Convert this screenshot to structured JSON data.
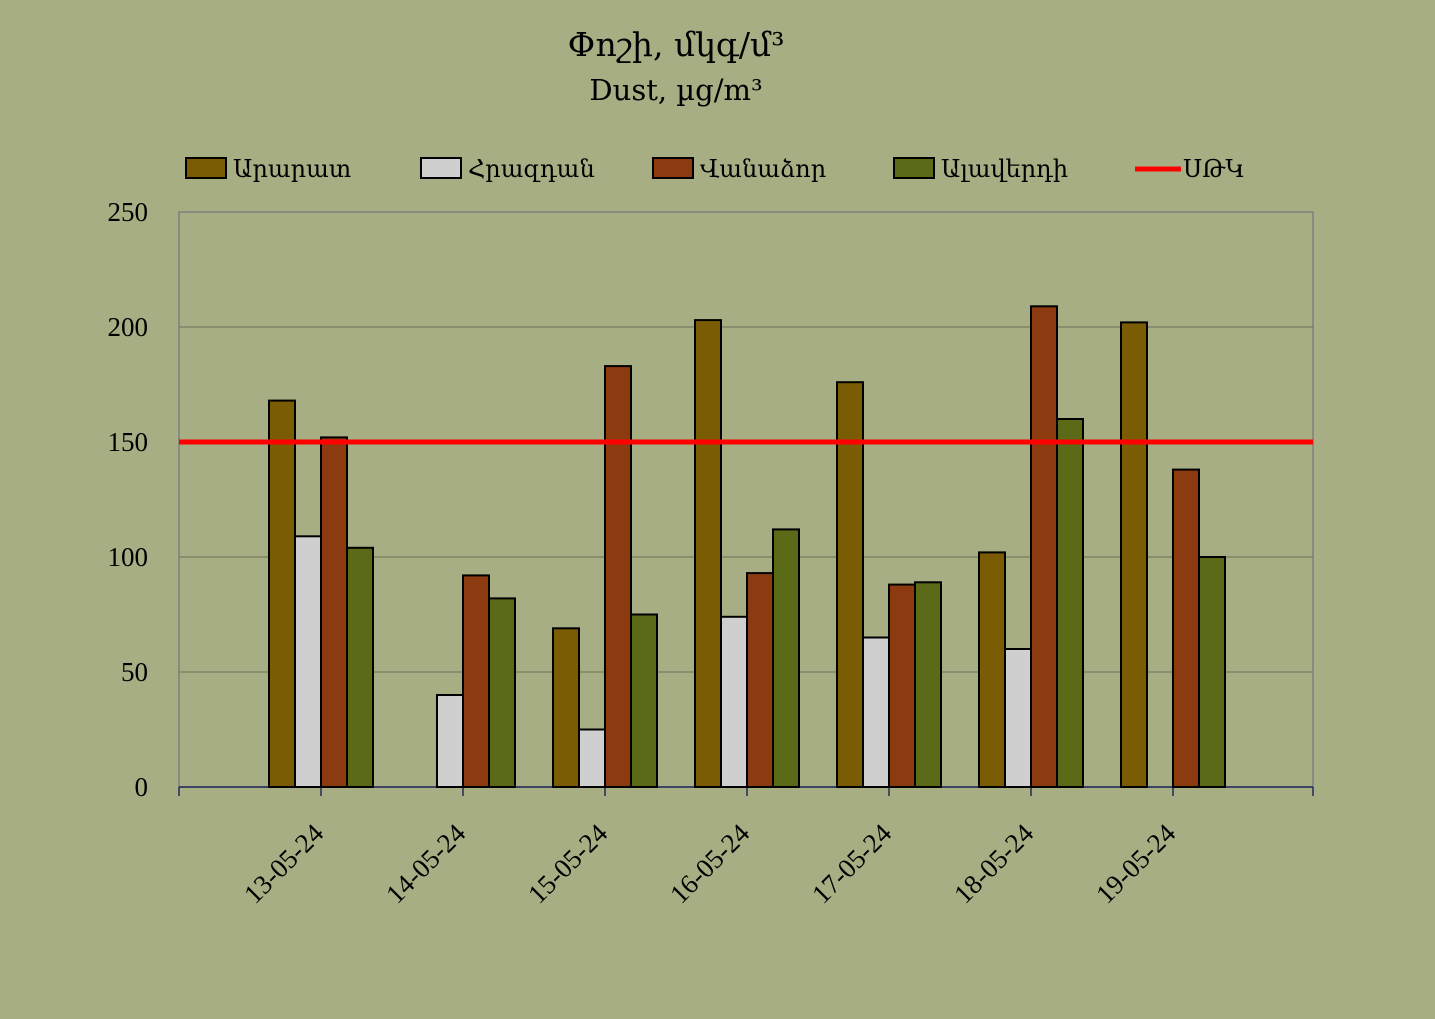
{
  "chart_data": {
    "type": "bar",
    "title": "Փոշի, մկգ/մ³",
    "subtitle": "Dust, µg/m³",
    "xlabel": "",
    "ylabel": "",
    "ylim": [
      0,
      250
    ],
    "yticks": [
      "0",
      "50",
      "100",
      "150",
      "200",
      "250"
    ],
    "grid": true,
    "legend_position": "top",
    "categories": [
      "13-05-24",
      "14-05-24",
      "15-05-24",
      "16-05-24",
      "17-05-24",
      "18-05-24",
      "19-05-24"
    ],
    "series": [
      {
        "name": "Արարատ",
        "color": "#7a5c05",
        "values": [
          168,
          null,
          69,
          203,
          176,
          102,
          202
        ]
      },
      {
        "name": "Հրազդան",
        "color": "#cfcfcf",
        "values": [
          109,
          40,
          25,
          74,
          65,
          60,
          null
        ]
      },
      {
        "name": "Վանաձոր",
        "color": "#8c3a0f",
        "values": [
          152,
          92,
          183,
          93,
          88,
          209,
          138
        ]
      },
      {
        "name": "Ալավերդի",
        "color": "#5a6a17",
        "values": [
          104,
          82,
          75,
          112,
          89,
          160,
          100
        ]
      }
    ],
    "reference_line": {
      "name": "ՍԹԿ",
      "value": 150,
      "color": "#ff0000"
    }
  }
}
